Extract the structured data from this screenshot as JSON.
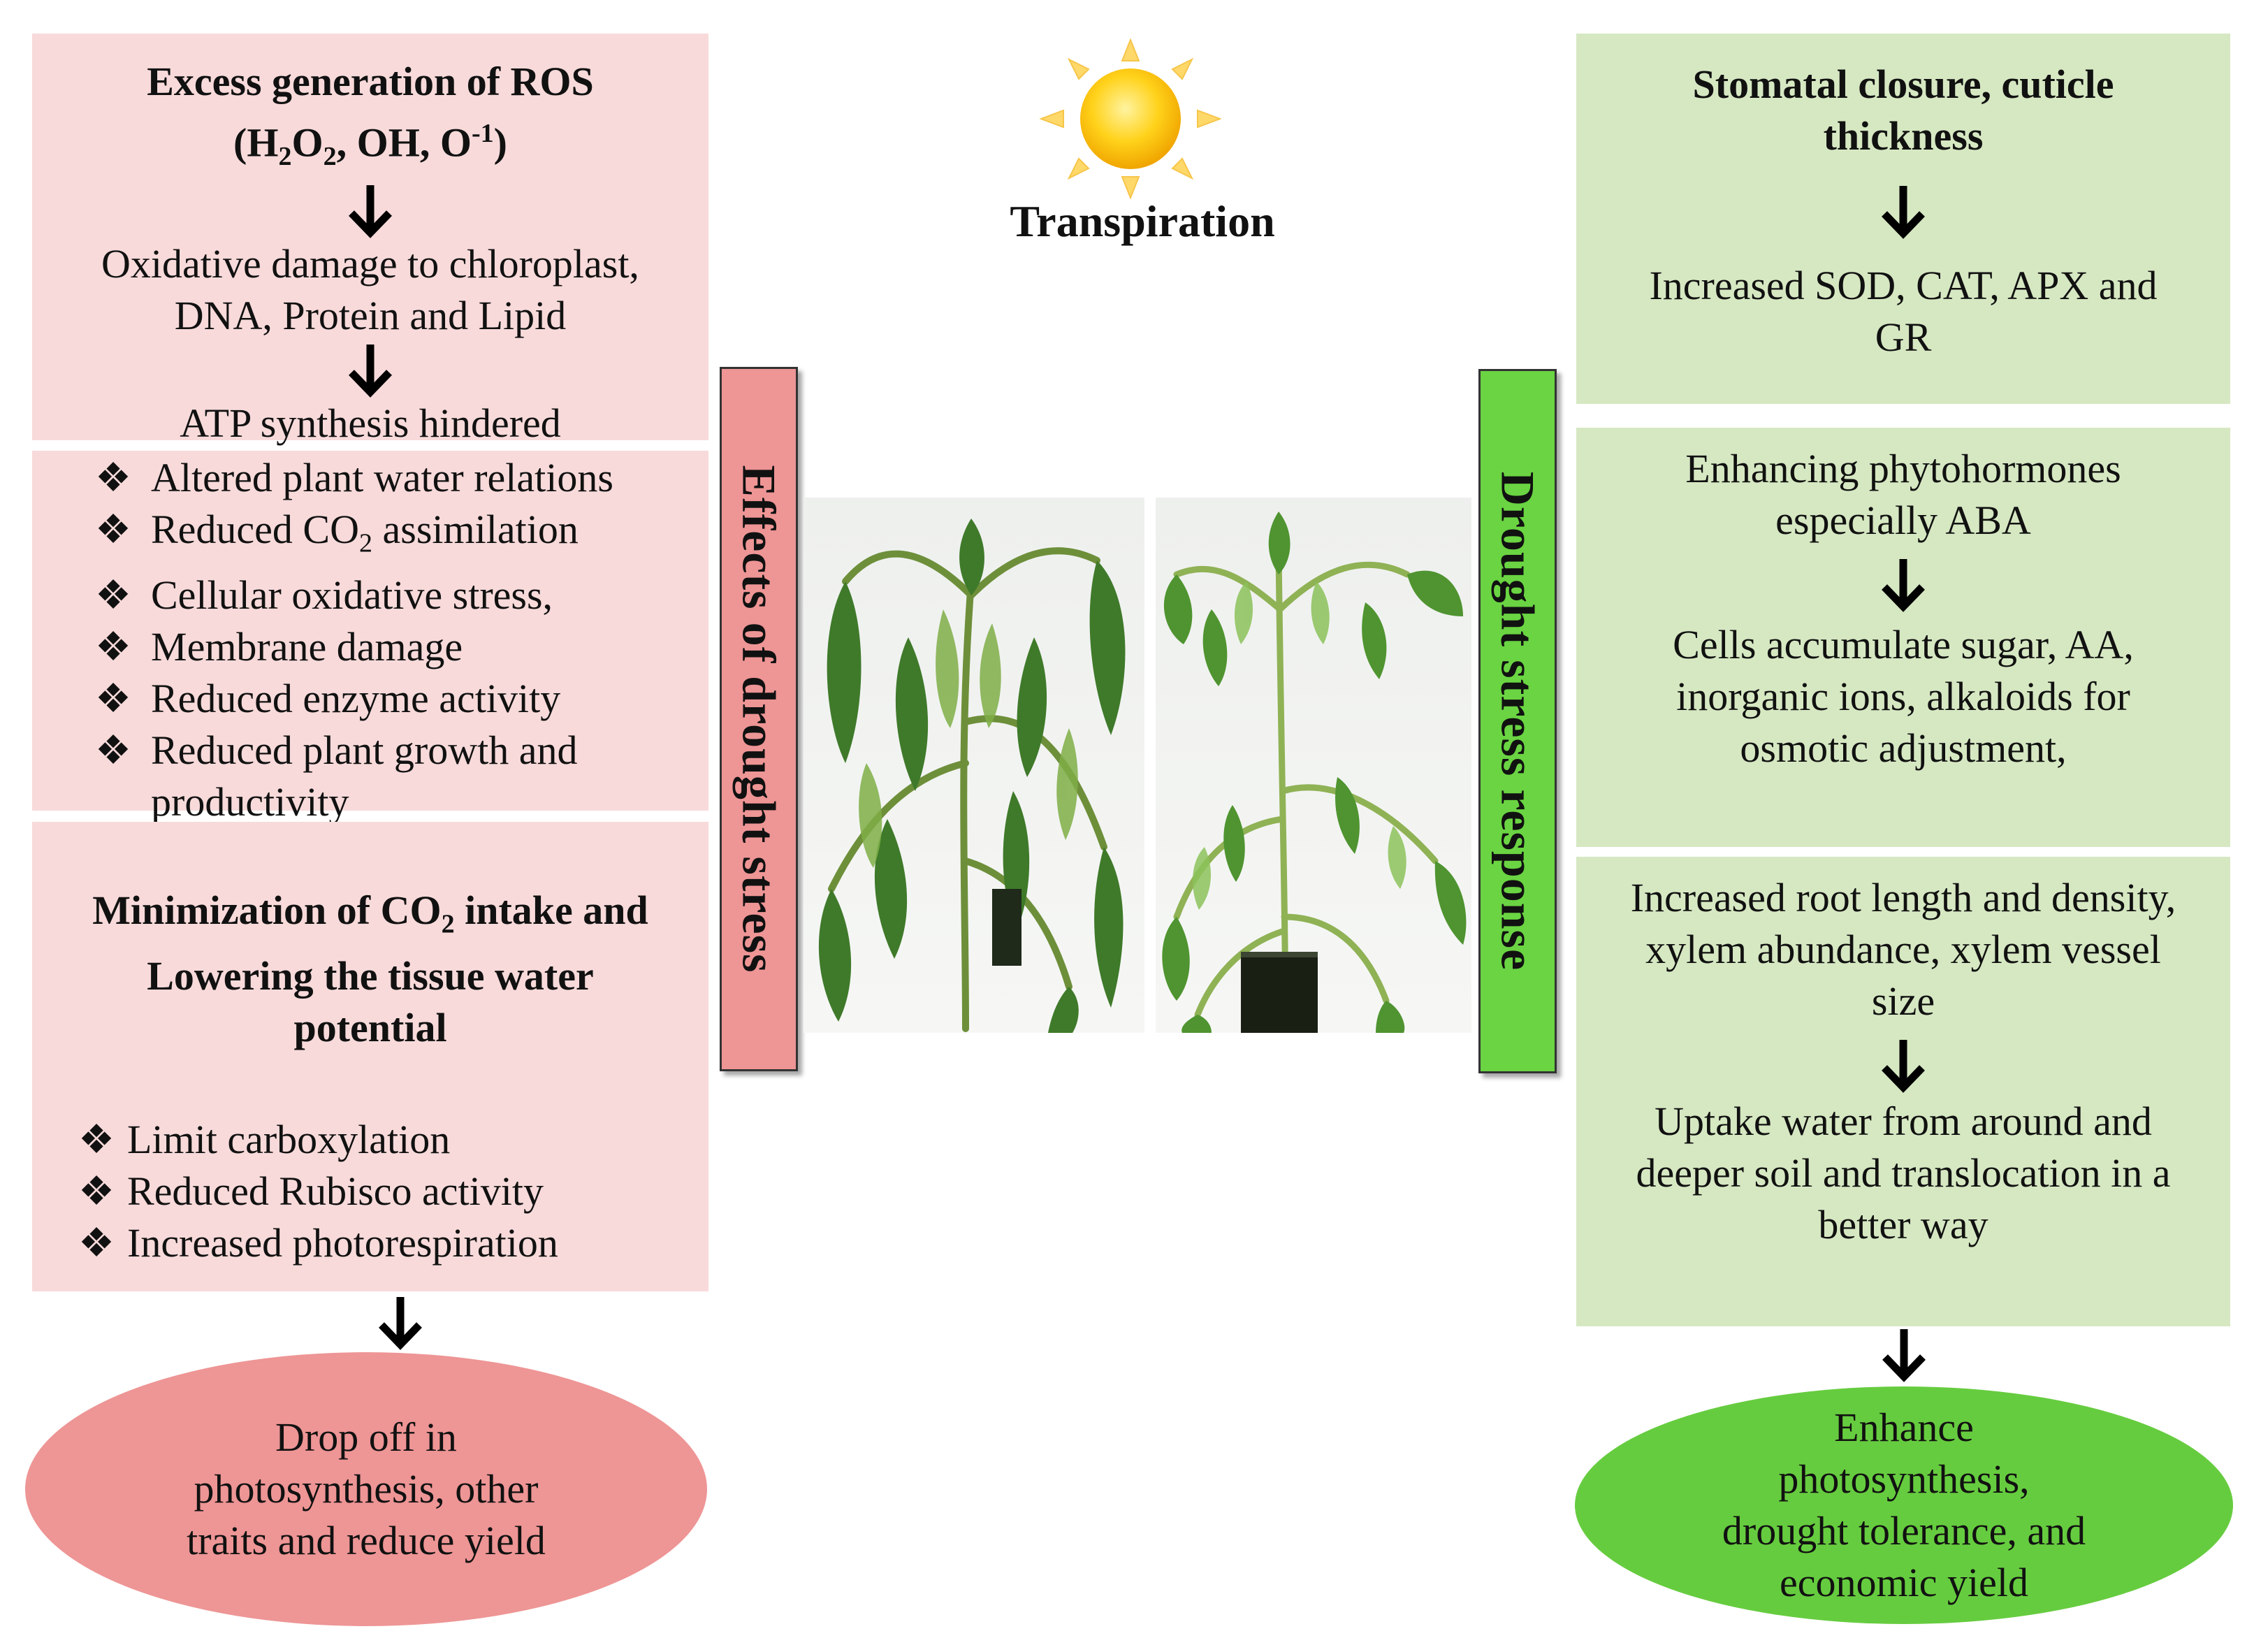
{
  "left": {
    "ros_title_line1": "Excess generation of  ROS",
    "ros_title_line2_prefix": "(H",
    "ros_title_line2_sub1": "2",
    "ros_title_line2_mid": "O",
    "ros_title_line2_sub2": "2",
    "ros_title_line2_rest": ", OH, O",
    "ros_title_line2_sup": "-1",
    "ros_title_line2_end": ")",
    "oxidative_line1": "Oxidative  damage to chloroplast,",
    "oxidative_line2": "DNA, Protein and Lipid",
    "atp": "ATP synthesis hindered",
    "effects_list": [
      "Altered  plant  water  relations",
      "Reduced CO",
      "Cellular  oxidative  stress,",
      "Membrane  damage",
      "Reduced enzyme  activity",
      "Reduced plant  growth and"
    ],
    "effects_co2_sub": "2",
    "effects_co2_rest": " assimilation",
    "effects_list_continuation": "productivity",
    "min_title_line1_prefix": "Minimization of CO",
    "min_title_line1_sub": "2",
    "min_title_line1_rest": " intake and",
    "min_title_line2": "Lowering the  tissue water",
    "min_title_line3": "potential",
    "min_list": [
      "Limit  carboxylation",
      "Reduced Rubisco activity",
      "Increased photorespiration"
    ],
    "outcome_line1": "Drop off in",
    "outcome_line2": "photosynthesis, other",
    "outcome_line3": "traits and  reduce yield"
  },
  "center": {
    "transpiration": "Transpiration",
    "effects_label": "Effects of drought  stress",
    "response_label": "Drought  stress  response"
  },
  "right": {
    "stomatal_line1": "Stomatal closure, cuticle",
    "stomatal_line2": "thickness",
    "enzymes_line1": "Increased SOD, CAT, APX and",
    "enzymes_line2": "GR",
    "hormone_line1": "Enhancing  phytohormones",
    "hormone_line2": "especially ABA",
    "osmotic_line1": "Cells accumulate  sugar, AA,",
    "osmotic_line2": "inorganic  ions,  alkaloids  for",
    "osmotic_line3": "osmotic adjustment,",
    "root_line1": "Increased root length  and density,",
    "root_line2": "xylem  abundance,  xylem  vessel",
    "root_line3": "size",
    "uptake_line1": "Uptake water  from around and",
    "uptake_line2": "deeper soil and translocation in a",
    "uptake_line3": "better way",
    "outcome_line1": "Enhance",
    "outcome_line2": "photosynthesis,",
    "outcome_line3": "drought tolerance, and",
    "outcome_line4": "economic yield"
  },
  "colors": {
    "pink_box": "#f8dada",
    "green_box": "#d6e8c2",
    "effects_label_bg": "#ee9595",
    "response_label_bg": "#6ad442",
    "left_ellipse": "#ee9595",
    "right_ellipse": "#66cc3f"
  }
}
